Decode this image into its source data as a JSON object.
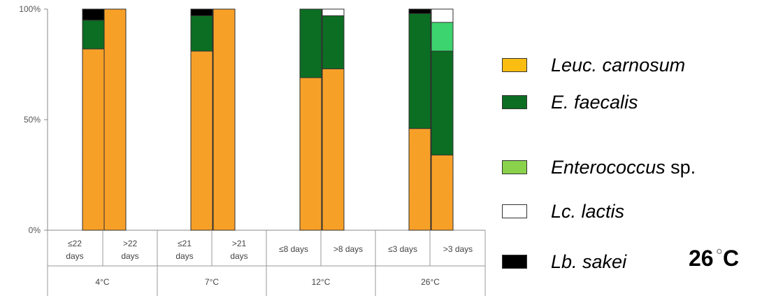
{
  "chart_data": {
    "type": "bar",
    "stacked": true,
    "y_ticks": [
      "100%",
      "50%",
      "0%"
    ],
    "ylim": [
      0,
      100
    ],
    "groups": [
      {
        "label": "4°C",
        "categories": [
          "≤22 days",
          ">22 days"
        ]
      },
      {
        "label": "7°C",
        "categories": [
          "≤21 days",
          ">21 days"
        ]
      },
      {
        "label": "12°C",
        "categories": [
          "≤8 days",
          ">8 days"
        ]
      },
      {
        "label": "26°C",
        "categories": [
          "≤3 days",
          ">3 days"
        ]
      }
    ],
    "categories": [
      "≤22 days",
      ">22 days",
      "≤21 days",
      ">21 days",
      "≤8 days",
      ">8 days",
      "≤3 days",
      ">3 days"
    ],
    "series": [
      {
        "name": "Leuc. carnosum",
        "color": "#f7a028",
        "values": [
          82,
          100,
          81,
          100,
          69,
          73,
          46,
          34
        ]
      },
      {
        "name": "E. faecalis",
        "color": "#0b6e22",
        "values": [
          13,
          0,
          16,
          0,
          31,
          24,
          52,
          47
        ]
      },
      {
        "name": "Enterococcus sp.",
        "color": "#3cd46e",
        "values": [
          0,
          0,
          0,
          0,
          0,
          0,
          0,
          13
        ]
      },
      {
        "name": "Lc. lactis",
        "color": "#ffffff",
        "values": [
          0,
          0,
          0,
          0,
          0,
          3,
          0,
          6
        ]
      },
      {
        "name": "Lb. sakei",
        "color": "#000000",
        "values": [
          5,
          0,
          3,
          0,
          0,
          0,
          2,
          0
        ]
      }
    ],
    "grid": false
  },
  "legend": {
    "items": [
      {
        "italic": "Leuc. carnosum",
        "plain": "",
        "color": "#fbbd12"
      },
      {
        "italic": "E. faecalis",
        "plain": "",
        "color": "#0b6e22"
      },
      {
        "italic": "Enterococcus",
        "plain": " sp.",
        "color": "#8ad24c"
      },
      {
        "italic": "Lc. lactis",
        "plain": "",
        "color": "#ffffff"
      },
      {
        "italic": "Lb. sakei",
        "plain": "",
        "color": "#000000"
      }
    ]
  },
  "annotation": {
    "number": "26",
    "degree": "°",
    "unit": "C"
  }
}
